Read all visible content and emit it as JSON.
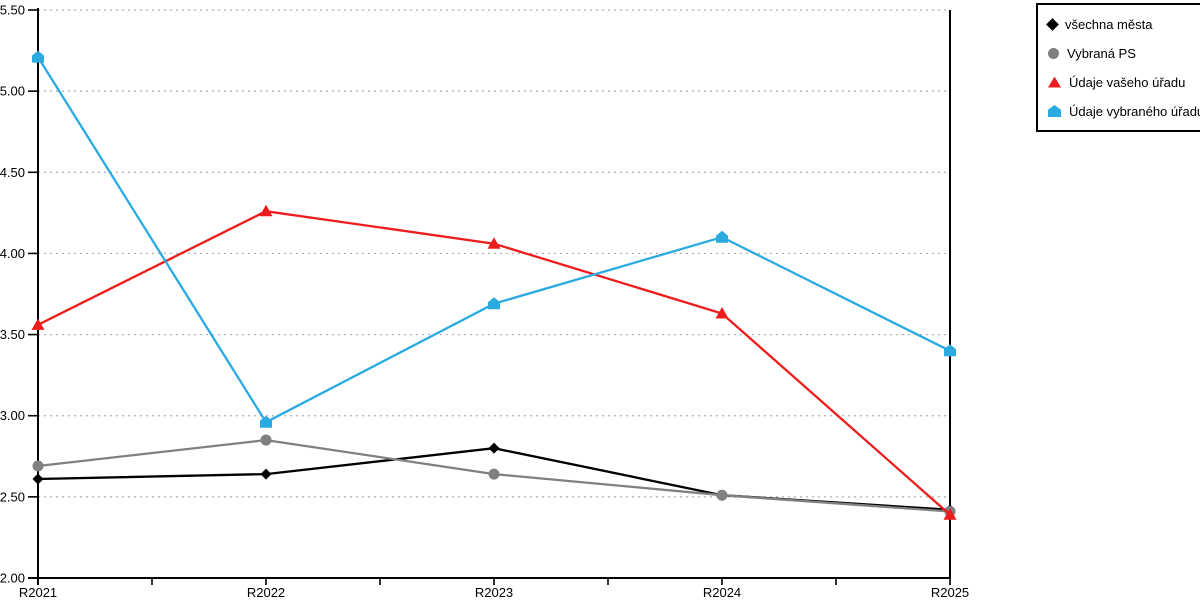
{
  "chart_data": {
    "type": "line",
    "title": "",
    "xlabel": "",
    "ylabel": "",
    "categories": [
      "R2021",
      "R2022",
      "R2023",
      "R2024",
      "R2025"
    ],
    "series": [
      {
        "name": "všechna města",
        "marker": "diamond",
        "color": "#000000",
        "values": [
          2.61,
          2.64,
          2.8,
          2.51,
          2.42
        ]
      },
      {
        "name": "Vybraná PS",
        "marker": "circle",
        "color": "#808080",
        "values": [
          2.69,
          2.85,
          2.64,
          2.51,
          2.41
        ]
      },
      {
        "name": "Údaje vašeho úřadu",
        "marker": "triangle",
        "color": "#EE1C1C",
        "values": [
          3.56,
          4.26,
          4.06,
          3.63,
          2.39
        ]
      },
      {
        "name": "Údaje vybraného úřadu",
        "marker": "pentagon",
        "color": "#29ABE2",
        "values": [
          5.21,
          2.96,
          3.69,
          4.1,
          3.4
        ]
      }
    ],
    "ylim": [
      2.0,
      5.5
    ],
    "ytick_step": 0.5,
    "y_tick_labels": [
      "2.00",
      "2.50",
      "3.00",
      "3.50",
      "4.00",
      "4.50",
      "5.00",
      "5.50"
    ],
    "grid": "horizontal dotted",
    "grid_color": "#ADADAD",
    "axis_color": "#000000",
    "legend_position": "top-right"
  }
}
